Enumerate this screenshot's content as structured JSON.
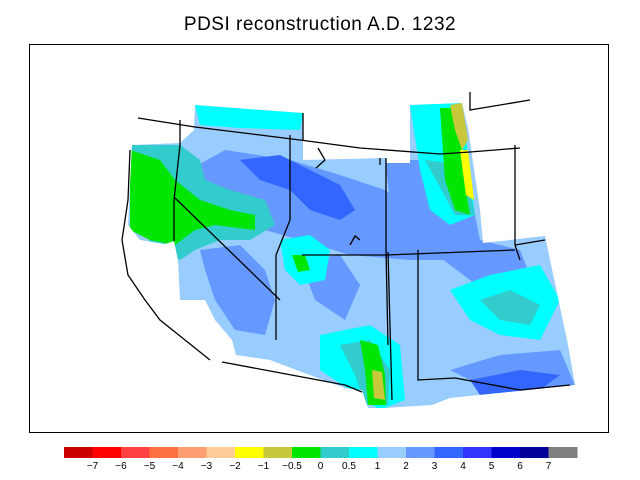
{
  "title": "PDSI reconstruction A.D. 1232",
  "legend": {
    "colors": [
      "#cc0000",
      "#ff0000",
      "#ff4040",
      "#ff7040",
      "#ff9e70",
      "#ffcc99",
      "#ffff00",
      "#c8c83c",
      "#00e600",
      "#33cccc",
      "#00ffff",
      "#99ccff",
      "#6699ff",
      "#3366ff",
      "#3333ff",
      "#0000cc",
      "#000099",
      "#808080"
    ],
    "tick_labels": [
      "−7",
      "−6",
      "−5",
      "−4",
      "−3",
      "−2",
      "−1",
      "−0.5",
      "0",
      "0.5",
      "1",
      "2",
      "3",
      "4",
      "5",
      "6",
      "7"
    ]
  },
  "map_colors": {
    "light_blue": "#99ccff",
    "medium_blue": "#6699ff",
    "blue": "#3366ff",
    "cyan": "#00ffff",
    "teal": "#33cccc",
    "green": "#00e600",
    "olive": "#c8c83c",
    "yellow": "#ffff00"
  }
}
